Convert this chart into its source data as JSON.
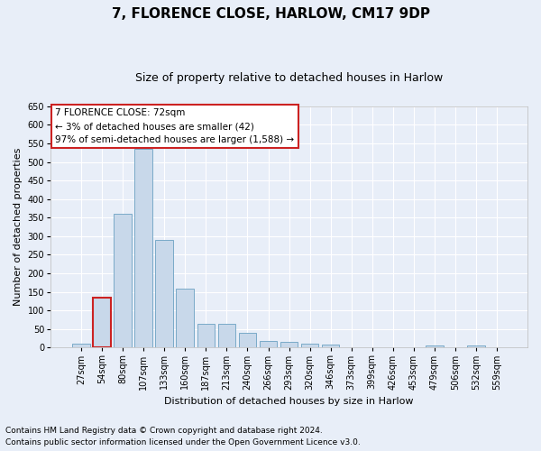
{
  "title": "7, FLORENCE CLOSE, HARLOW, CM17 9DP",
  "subtitle": "Size of property relative to detached houses in Harlow",
  "xlabel": "Distribution of detached houses by size in Harlow",
  "ylabel": "Number of detached properties",
  "categories": [
    "27sqm",
    "54sqm",
    "80sqm",
    "107sqm",
    "133sqm",
    "160sqm",
    "187sqm",
    "213sqm",
    "240sqm",
    "266sqm",
    "293sqm",
    "320sqm",
    "346sqm",
    "373sqm",
    "399sqm",
    "426sqm",
    "453sqm",
    "479sqm",
    "506sqm",
    "532sqm",
    "559sqm"
  ],
  "values": [
    10,
    135,
    360,
    535,
    290,
    158,
    65,
    65,
    40,
    18,
    15,
    10,
    8,
    0,
    0,
    0,
    0,
    5,
    0,
    5,
    0
  ],
  "bar_color": "#c8d8ea",
  "bar_edge_color": "#7aaac8",
  "highlight_bar_index": 1,
  "highlight_edge_color": "#cc2222",
  "ylim": [
    0,
    650
  ],
  "yticks": [
    0,
    50,
    100,
    150,
    200,
    250,
    300,
    350,
    400,
    450,
    500,
    550,
    600,
    650
  ],
  "annotation_text": "7 FLORENCE CLOSE: 72sqm\n← 3% of detached houses are smaller (42)\n97% of semi-detached houses are larger (1,588) →",
  "annotation_box_color": "#ffffff",
  "annotation_border_color": "#cc2222",
  "footer_line1": "Contains HM Land Registry data © Crown copyright and database right 2024.",
  "footer_line2": "Contains public sector information licensed under the Open Government Licence v3.0.",
  "background_color": "#e8eef8",
  "plot_bg_color": "#e8eef8",
  "title_fontsize": 11,
  "subtitle_fontsize": 9,
  "axis_label_fontsize": 8,
  "tick_fontsize": 7,
  "annotation_fontsize": 7.5,
  "footer_fontsize": 6.5,
  "grid_color": "#ffffff",
  "bar_width": 0.85
}
